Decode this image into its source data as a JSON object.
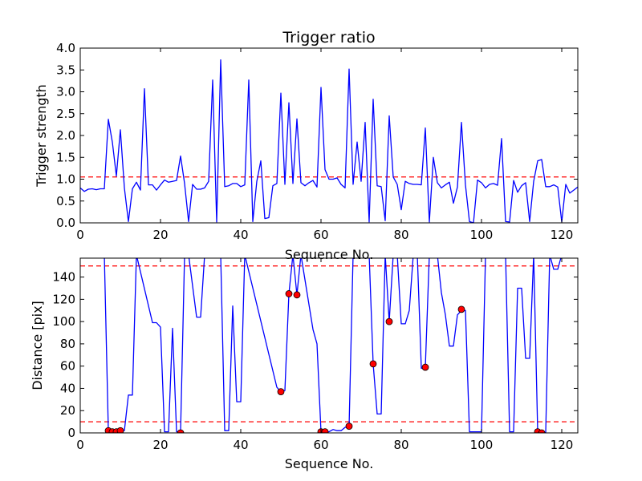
{
  "chart_data": [
    {
      "type": "line",
      "title": "Trigger ratio",
      "xlabel": "Sequence No.",
      "ylabel": "Trigger strength",
      "xlim": [
        0,
        124
      ],
      "ylim": [
        0,
        4.0
      ],
      "xticks": [
        "0",
        "20",
        "40",
        "60",
        "80",
        "100",
        "120"
      ],
      "yticks": [
        "0.0",
        "0.5",
        "1.0",
        "1.5",
        "2.0",
        "2.5",
        "3.0",
        "3.5",
        "4.0"
      ],
      "threshold": 1.05,
      "grid": false,
      "series": [
        {
          "color": "#0000ff",
          "x": [
            0,
            1,
            2,
            3,
            4,
            5,
            6,
            7,
            8,
            9,
            10,
            11,
            12,
            13,
            14,
            15,
            16,
            17,
            18,
            19,
            20,
            21,
            22,
            23,
            24,
            25,
            26,
            27,
            28,
            29,
            30,
            31,
            32,
            33,
            34,
            35,
            36,
            37,
            38,
            39,
            40,
            41,
            42,
            43,
            44,
            45,
            46,
            47,
            48,
            49,
            50,
            51,
            52,
            53,
            54,
            55,
            56,
            57,
            58,
            59,
            60,
            61,
            62,
            63,
            64,
            65,
            66,
            67,
            68,
            69,
            70,
            71,
            72,
            73,
            74,
            75,
            76,
            77,
            78,
            79,
            80,
            81,
            82,
            83,
            84,
            85,
            86,
            87,
            88,
            89,
            90,
            91,
            92,
            93,
            94,
            95,
            96,
            97,
            98,
            99,
            100,
            101,
            102,
            103,
            104,
            105,
            106,
            107,
            108,
            109,
            110,
            111,
            112,
            113,
            114,
            115,
            116,
            117,
            118,
            119,
            120,
            121,
            122,
            123,
            124
          ],
          "y": [
            0.8,
            0.72,
            0.77,
            0.78,
            0.76,
            0.78,
            0.78,
            2.37,
            1.85,
            1.07,
            2.13,
            0.8,
            0.03,
            0.78,
            0.93,
            0.75,
            3.07,
            0.87,
            0.87,
            0.75,
            0.87,
            0.98,
            0.93,
            0.95,
            0.97,
            1.53,
            0.9,
            0.03,
            0.88,
            0.77,
            0.77,
            0.8,
            0.95,
            3.27,
            0.02,
            3.73,
            0.83,
            0.85,
            0.9,
            0.9,
            0.83,
            0.87,
            3.27,
            0.03,
            0.95,
            1.42,
            0.1,
            0.12,
            0.85,
            0.9,
            2.97,
            0.88,
            2.75,
            0.9,
            2.38,
            0.92,
            0.85,
            0.92,
            0.97,
            0.82,
            3.1,
            1.22,
            1.0,
            1.0,
            1.03,
            0.88,
            0.8,
            3.52,
            0.88,
            1.85,
            0.95,
            2.3,
            0.02,
            2.83,
            0.85,
            0.83,
            0.05,
            2.45,
            1.05,
            0.88,
            0.3,
            0.95,
            0.9,
            0.88,
            0.88,
            0.87,
            2.17,
            0.02,
            1.5,
            0.92,
            0.8,
            0.87,
            0.93,
            0.45,
            0.82,
            2.3,
            0.87,
            0.03,
            0.0,
            0.98,
            0.92,
            0.8,
            0.88,
            0.9,
            0.86,
            1.93,
            0.03,
            0.02,
            0.97,
            0.7,
            0.85,
            0.92,
            0.03,
            0.95,
            1.42,
            1.45,
            0.83,
            0.83,
            0.87,
            0.82,
            0.02,
            0.88,
            0.68,
            0.75,
            0.82
          ]
        }
      ]
    },
    {
      "type": "line",
      "title": "",
      "xlabel": "Sequence No.",
      "ylabel": "Distance [pix]",
      "xlim": [
        0,
        124
      ],
      "ylim": [
        0,
        157
      ],
      "xticks": [
        "0",
        "20",
        "40",
        "60",
        "80",
        "100",
        "120"
      ],
      "yticks": [
        "0",
        "20",
        "40",
        "60",
        "80",
        "100",
        "120",
        "140"
      ],
      "thresholds": [
        10,
        150
      ],
      "grid": false,
      "series": [
        {
          "color": "#0000ff",
          "x": [
            6,
            7,
            8,
            9,
            10,
            11,
            12,
            13,
            14,
            18,
            19,
            20,
            21,
            22,
            23,
            24,
            25,
            26,
            27,
            29,
            30,
            31,
            35,
            36,
            37,
            38,
            39,
            40,
            41,
            49,
            50,
            51,
            52,
            53,
            54,
            55,
            58,
            59,
            60,
            61,
            62,
            63,
            64,
            65,
            66,
            67,
            68,
            72,
            73,
            74,
            75,
            76,
            77,
            78,
            79,
            80,
            81,
            82,
            83,
            84,
            85,
            86,
            87,
            89,
            90,
            91,
            92,
            93,
            94,
            95,
            96,
            97,
            98,
            99,
            100,
            101,
            106,
            107,
            108,
            109,
            110,
            111,
            112,
            113,
            114,
            115,
            116,
            117,
            118,
            119,
            120,
            121
          ],
          "y": [
            160,
            2,
            1,
            1,
            2,
            2,
            34,
            34,
            160,
            99,
            99,
            95,
            1,
            1,
            94,
            1,
            1,
            160,
            160,
            104,
            104,
            160,
            160,
            2,
            2,
            114,
            28,
            28,
            160,
            41,
            37,
            38,
            125,
            160,
            124,
            160,
            93,
            80,
            1,
            1,
            1,
            3,
            2,
            2,
            5,
            6,
            160,
            160,
            62,
            17,
            17,
            160,
            100,
            160,
            160,
            98,
            98,
            110,
            160,
            160,
            58,
            59,
            160,
            160,
            126,
            106,
            78,
            78,
            106,
            110,
            110,
            1,
            1,
            1,
            1,
            160,
            160,
            1,
            1,
            130,
            130,
            67,
            67,
            160,
            1,
            1,
            0,
            160,
            147,
            147,
            160,
            160
          ]
        }
      ],
      "markers": {
        "color": "#ff0000",
        "x": [
          7,
          8,
          9,
          10,
          25,
          50,
          52,
          54,
          60,
          61,
          67,
          73,
          77,
          86,
          95,
          114,
          115
        ],
        "y": [
          2,
          1,
          1,
          2,
          0,
          37,
          125,
          124,
          1,
          1,
          6,
          62,
          100,
          59,
          111,
          1,
          0
        ]
      }
    }
  ]
}
